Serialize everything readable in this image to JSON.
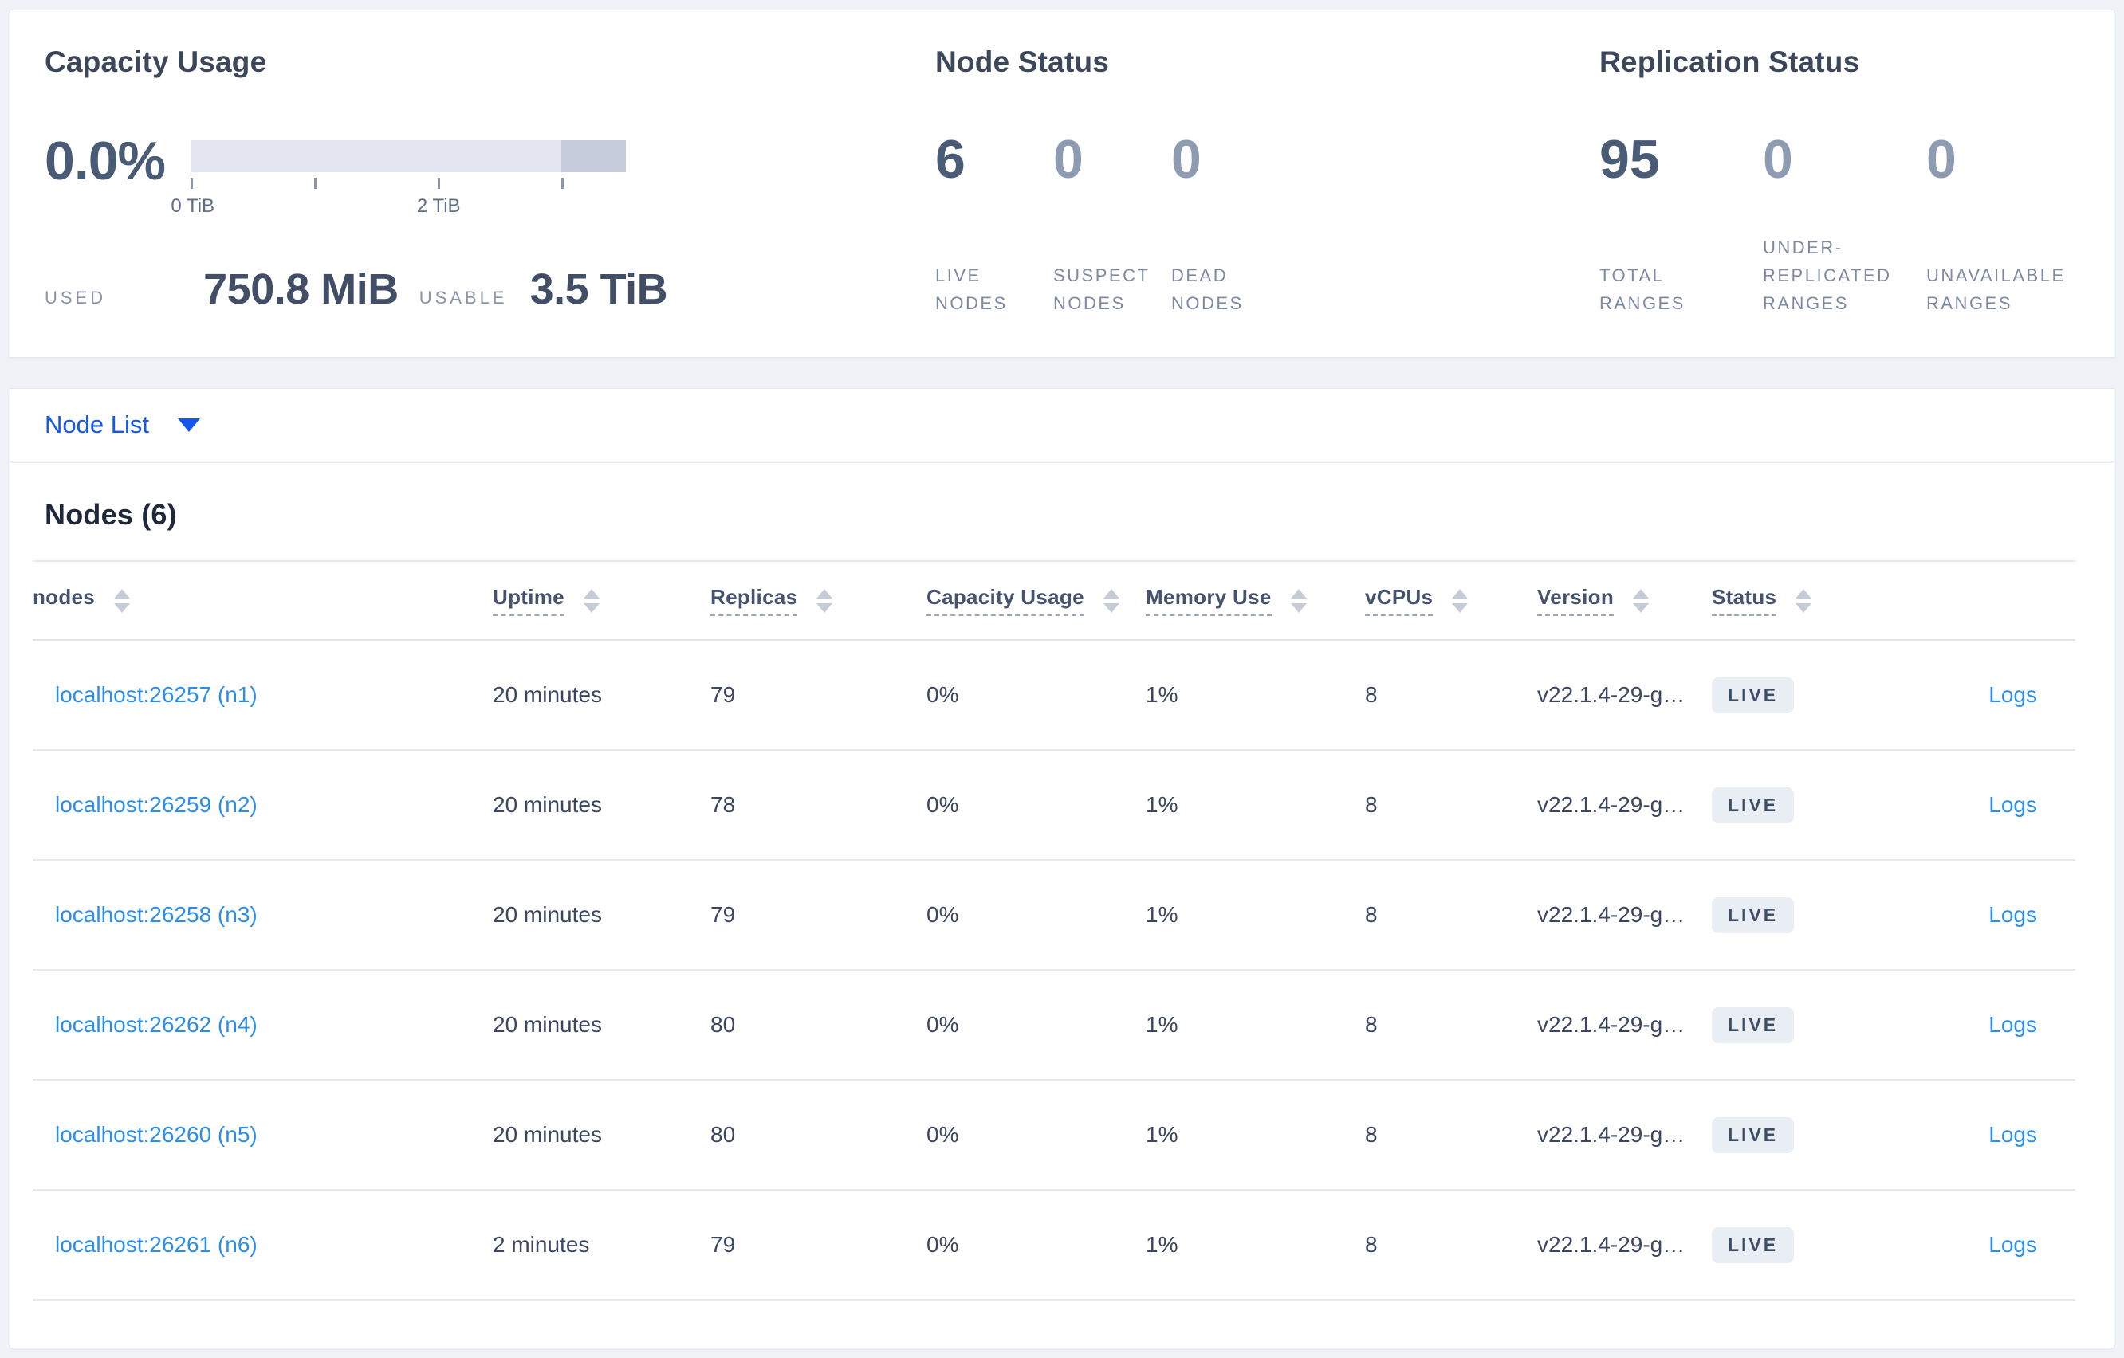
{
  "colors": {
    "accent_blue": "#1457eb",
    "link_blue": "#2b8ee8",
    "stat_dark": "#4a5b76",
    "stat_dim": "#8d9bb3",
    "badge_bg": "#e9edf4",
    "bar_light": "#e3e6f0",
    "bar_dark": "#c7ccdc"
  },
  "overview": {
    "capacity": {
      "title": "Capacity Usage",
      "percent": "0.0%",
      "axis_labels": [
        "0 TiB",
        "2 TiB"
      ],
      "used_label": "USED",
      "used_value": "750.8 MiB",
      "usable_label": "USABLE",
      "usable_value": "3.5 TiB"
    },
    "node_status": {
      "title": "Node Status",
      "stats": [
        {
          "value": "6",
          "label": "LIVE NODES"
        },
        {
          "value": "0",
          "label": "SUSPECT NODES"
        },
        {
          "value": "0",
          "label": "DEAD NODES"
        }
      ]
    },
    "replication": {
      "title": "Replication Status",
      "stats": [
        {
          "value": "95",
          "label": "TOTAL RANGES"
        },
        {
          "value": "0",
          "label": "UNDER-REPLICATED RANGES"
        },
        {
          "value": "0",
          "label": "UNAVAILABLE RANGES"
        }
      ]
    }
  },
  "node_list": {
    "dropdown_label": "Node List"
  },
  "table": {
    "heading": "Nodes (6)",
    "columns": [
      "nodes",
      "Uptime",
      "Replicas",
      "Capacity Usage",
      "Memory Use",
      "vCPUs",
      "Version",
      "Status"
    ],
    "logs_label": "Logs",
    "rows": [
      {
        "node": "localhost:26257 (n1)",
        "uptime": "20 minutes",
        "replicas": "79",
        "capacity": "0%",
        "memory": "1%",
        "vcpus": "8",
        "version": "v22.1.4-29-g…",
        "status": "LIVE",
        "logs": "Logs"
      },
      {
        "node": "localhost:26259 (n2)",
        "uptime": "20 minutes",
        "replicas": "78",
        "capacity": "0%",
        "memory": "1%",
        "vcpus": "8",
        "version": "v22.1.4-29-g…",
        "status": "LIVE",
        "logs": "Logs"
      },
      {
        "node": "localhost:26258 (n3)",
        "uptime": "20 minutes",
        "replicas": "79",
        "capacity": "0%",
        "memory": "1%",
        "vcpus": "8",
        "version": "v22.1.4-29-g…",
        "status": "LIVE",
        "logs": "Logs"
      },
      {
        "node": "localhost:26262 (n4)",
        "uptime": "20 minutes",
        "replicas": "80",
        "capacity": "0%",
        "memory": "1%",
        "vcpus": "8",
        "version": "v22.1.4-29-g…",
        "status": "LIVE",
        "logs": "Logs"
      },
      {
        "node": "localhost:26260 (n5)",
        "uptime": "20 minutes",
        "replicas": "80",
        "capacity": "0%",
        "memory": "1%",
        "vcpus": "8",
        "version": "v22.1.4-29-g…",
        "status": "LIVE",
        "logs": "Logs"
      },
      {
        "node": "localhost:26261 (n6)",
        "uptime": "2 minutes",
        "replicas": "79",
        "capacity": "0%",
        "memory": "1%",
        "vcpus": "8",
        "version": "v22.1.4-29-g…",
        "status": "LIVE",
        "logs": "Logs"
      }
    ]
  }
}
